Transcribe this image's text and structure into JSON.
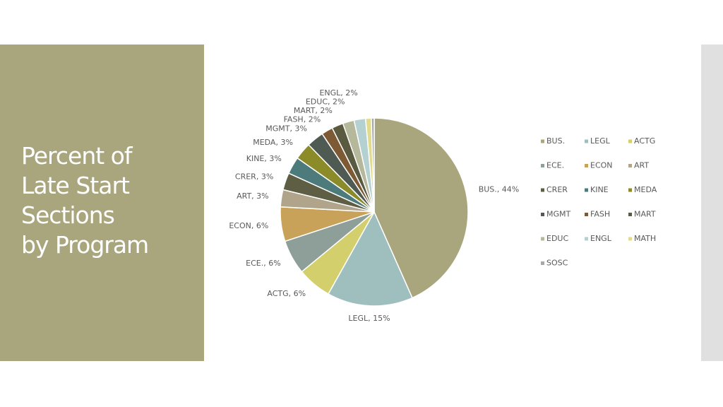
{
  "slide": {
    "title": [
      "Percent of",
      "Late Start",
      "Sections",
      "by Program"
    ]
  },
  "chart_data": {
    "type": "pie",
    "categories": [
      "BUS.",
      "LEGL",
      "ACTG",
      "ECE.",
      "ECON",
      "ART",
      "CRER",
      "KINE",
      "MEDA",
      "MGMT",
      "FASH",
      "MART",
      "EDUC",
      "ENGL",
      "MATH",
      "SOSC"
    ],
    "values": [
      44,
      15,
      6,
      6,
      6,
      3,
      3,
      3,
      3,
      3,
      2,
      2,
      2,
      2,
      1,
      0.5
    ],
    "value_labels": [
      "BUS., 44%",
      "LEGL, 15%",
      "ACTG, 6%",
      "ECE., 6%",
      "ECON, 6%",
      "ART, 3%",
      "CRER, 3%",
      "KINE, 3%",
      "MEDA, 3%",
      "MGMT, 3%",
      "FASH, 2%",
      "MART, 2%",
      "EDUC, 2%",
      "ENGL, 2%",
      null,
      null
    ],
    "colors": [
      "#a9a67e",
      "#9fbfbf",
      "#d4cf6d",
      "#8e9e98",
      "#c9a25a",
      "#b0a58a",
      "#5e5e44",
      "#4d7b7b",
      "#8b8b2a",
      "#4f5a52",
      "#7d5a34",
      "#5a5a40",
      "#b5b89a",
      "#b4d0d0",
      "#e0dc8c",
      "#a9a9a9"
    ],
    "legend": "right"
  }
}
